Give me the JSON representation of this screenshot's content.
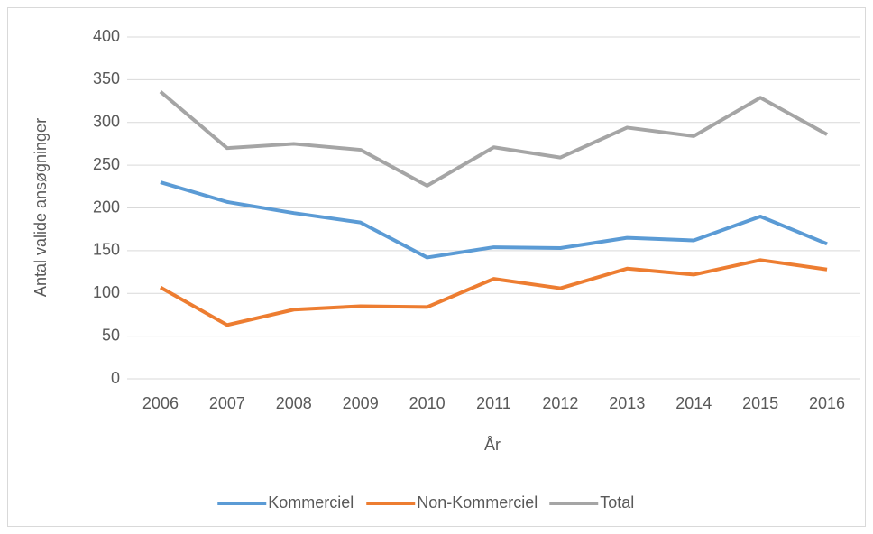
{
  "chart_data": {
    "type": "line",
    "categories": [
      "2006",
      "2007",
      "2008",
      "2009",
      "2010",
      "2011",
      "2012",
      "2013",
      "2014",
      "2015",
      "2016"
    ],
    "series": [
      {
        "name": "Kommerciel",
        "color": "#5b9bd5",
        "values": [
          230,
          207,
          194,
          183,
          142,
          154,
          153,
          165,
          162,
          190,
          158
        ]
      },
      {
        "name": "Non-Kommerciel",
        "color": "#ed7d31",
        "values": [
          107,
          63,
          81,
          85,
          84,
          117,
          106,
          129,
          122,
          139,
          128
        ]
      },
      {
        "name": "Total",
        "color": "#a5a5a5",
        "values": [
          336,
          270,
          275,
          268,
          226,
          271,
          259,
          294,
          284,
          329,
          286
        ]
      }
    ],
    "xlabel": "År",
    "ylabel": "Antal valide ansøgninger",
    "ylim": [
      0,
      400
    ],
    "yticks": [
      0,
      50,
      100,
      150,
      200,
      250,
      300,
      350,
      400
    ],
    "grid": true,
    "legend": "bottom"
  }
}
